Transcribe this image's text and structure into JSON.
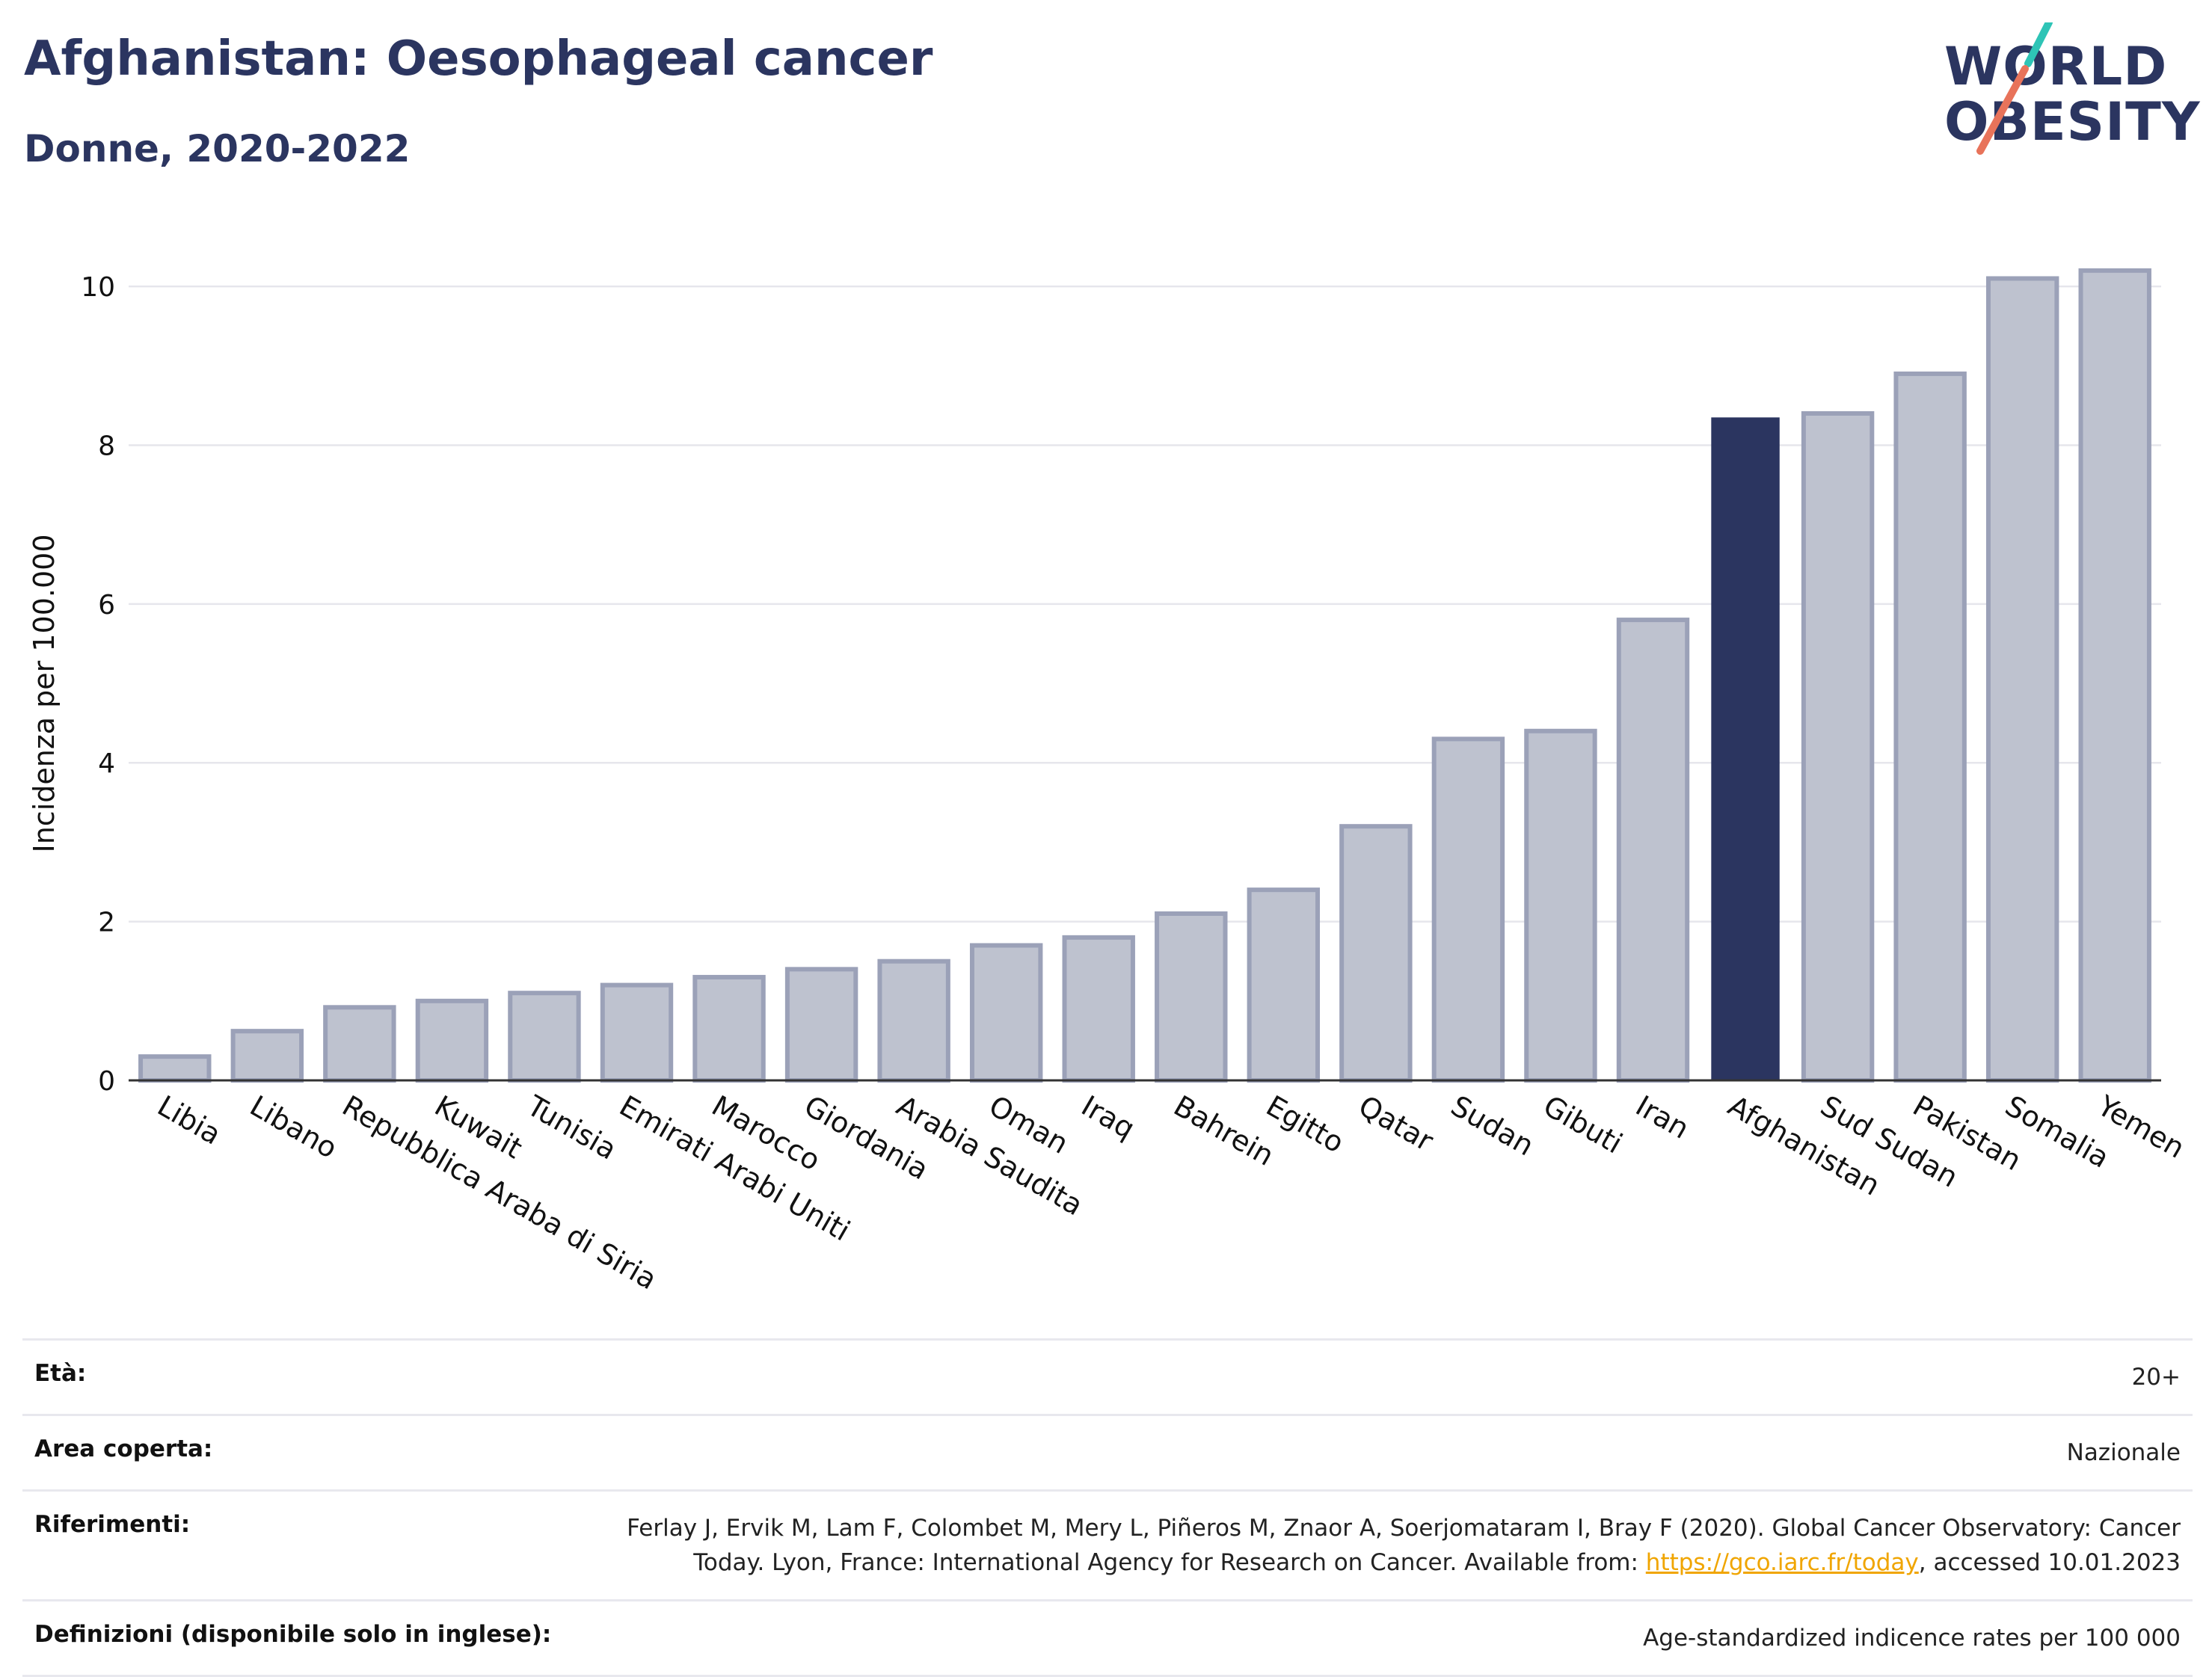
{
  "header": {
    "title": "Afghanistan: Oesophageal cancer",
    "subtitle": "Donne, 2020-2022"
  },
  "logo": {
    "line1": "WORLD",
    "line2": "OBESITY"
  },
  "colors": {
    "highlight": "#2b3560",
    "bar": "#bec2cf",
    "bar_border": "#9ba1b8",
    "grid": "#e6e6ec",
    "slash_teal": "#2ec4b6",
    "slash_red": "#e8735a"
  },
  "chart_data": {
    "type": "bar",
    "title": "Afghanistan: Oesophageal cancer",
    "subtitle": "Donne, 2020-2022",
    "ylabel": "Incidenza per 100.000",
    "xlabel": "",
    "ylim": [
      0,
      10.5
    ],
    "yticks": [
      0,
      2,
      4,
      6,
      8,
      10
    ],
    "grid": true,
    "highlight": "Afghanistan",
    "categories": [
      "Libia",
      "Libano",
      "Repubblica Araba di Siria",
      "Kuwait",
      "Tunisia",
      "Emirati Arabi Uniti",
      "Marocco",
      "Giordania",
      "Arabia Saudita",
      "Oman",
      "Iraq",
      "Bahrein",
      "Egitto",
      "Qatar",
      "Sudan",
      "Gibuti",
      "Iran",
      "Afghanistan",
      "Sud Sudan",
      "Pakistan",
      "Somalia",
      "Yemen"
    ],
    "values": [
      0.3,
      0.62,
      0.92,
      1.0,
      1.1,
      1.2,
      1.3,
      1.4,
      1.5,
      1.7,
      1.8,
      2.1,
      2.4,
      3.2,
      4.3,
      4.4,
      5.8,
      8.35,
      8.4,
      8.9,
      10.1,
      10.2
    ]
  },
  "info": {
    "age_label": "Età:",
    "age_value": "20+",
    "area_label": "Area coperta:",
    "area_value": "Nazionale",
    "ref_label": "Riferimenti:",
    "ref_text_1": "Ferlay J, Ervik M, Lam F, Colombet M, Mery L, Piñeros M, Znaor A, Soerjomataram I, Bray F (2020). Global Cancer Observatory: Cancer Today. Lyon, France: International Agency for Research on Cancer. Available from: ",
    "ref_link": "https://gco.iarc.fr/today",
    "ref_text_2": ", accessed 10.01.2023",
    "def_label": "Definizioni (disponibile solo in inglese):",
    "def_value": "Age-standardized indicence rates per 100 000"
  }
}
